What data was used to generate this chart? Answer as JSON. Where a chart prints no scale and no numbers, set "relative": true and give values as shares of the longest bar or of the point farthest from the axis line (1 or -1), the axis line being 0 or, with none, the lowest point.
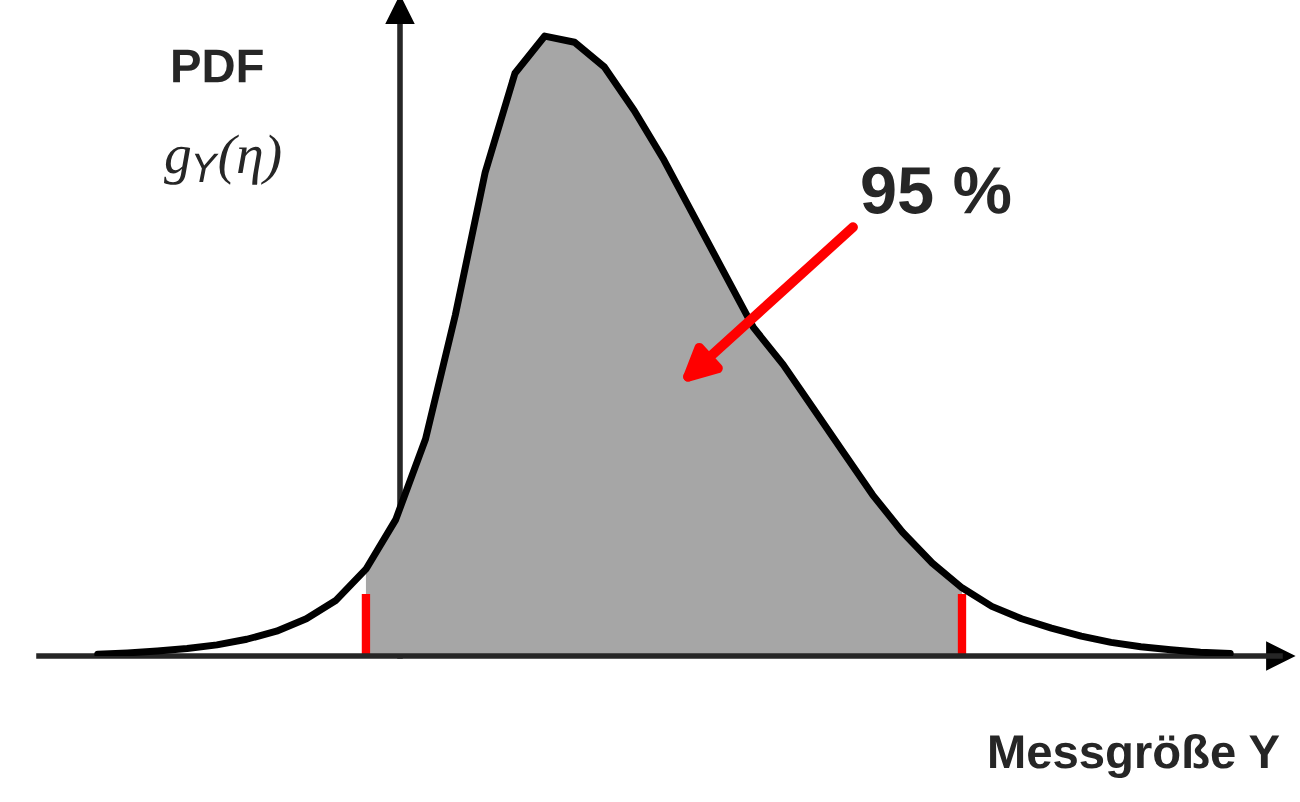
{
  "chart_data": {
    "type": "line",
    "relative": true,
    "xlabel": "Messgröße Y",
    "ylabel": "PDF\ng$_{Y}$(η)",
    "categories": [
      null,
      null,
      null,
      null,
      null,
      null,
      null,
      null,
      null,
      null,
      null,
      null,
      null,
      null,
      null,
      null,
      null,
      null,
      null,
      null,
      null,
      null,
      null,
      null,
      null,
      null,
      null,
      null,
      null,
      null,
      null,
      null,
      null,
      null,
      null,
      null,
      null,
      null,
      null
    ],
    "series": [
      {
        "color": "#000000",
        "values": [
          0.003,
          0.005,
          0.008,
          0.012,
          0.018,
          0.027,
          0.04,
          0.06,
          0.09,
          0.14,
          0.22,
          0.35,
          0.55,
          0.78,
          0.94,
          1.0,
          0.99,
          0.95,
          0.88,
          0.8,
          0.71,
          0.62,
          0.53,
          0.47,
          0.4,
          0.33,
          0.26,
          0.2,
          0.15,
          0.11,
          0.08,
          0.06,
          0.045,
          0.032,
          0.022,
          0.015,
          0.01,
          0.006,
          0.004
        ]
      }
    ],
    "annotations": [
      "95 %"
    ]
  }
}
